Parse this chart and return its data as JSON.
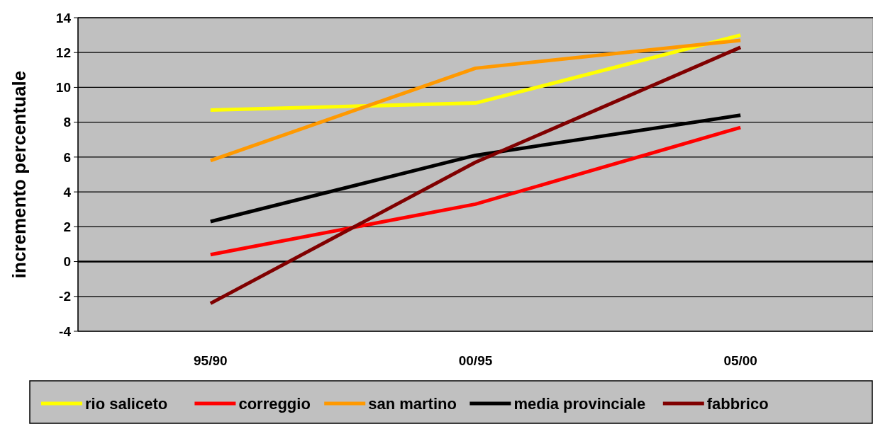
{
  "chart_data": {
    "type": "line",
    "ylabel": "incremento percentuale",
    "categories": [
      "95/90",
      "00/95",
      "05/00"
    ],
    "series": [
      {
        "name": "rio saliceto",
        "color": "#ffff00",
        "values": [
          8.7,
          9.1,
          13.0
        ]
      },
      {
        "name": "correggio",
        "color": "#ff0000",
        "values": [
          0.4,
          3.3,
          7.7
        ]
      },
      {
        "name": "san martino",
        "color": "#ff9900",
        "values": [
          5.8,
          11.1,
          12.7
        ]
      },
      {
        "name": "media provinciale",
        "color": "#000000",
        "values": [
          2.3,
          6.1,
          8.4
        ]
      },
      {
        "name": "fabbrico",
        "color": "#800000",
        "values": [
          -2.4,
          5.7,
          12.3
        ]
      }
    ],
    "ylim": [
      -4,
      14
    ],
    "yticks": [
      -4,
      -2,
      0,
      2,
      4,
      6,
      8,
      10,
      12,
      14
    ],
    "grid": "y",
    "legend": "bottom",
    "marker": "none",
    "line_style": "solid"
  }
}
